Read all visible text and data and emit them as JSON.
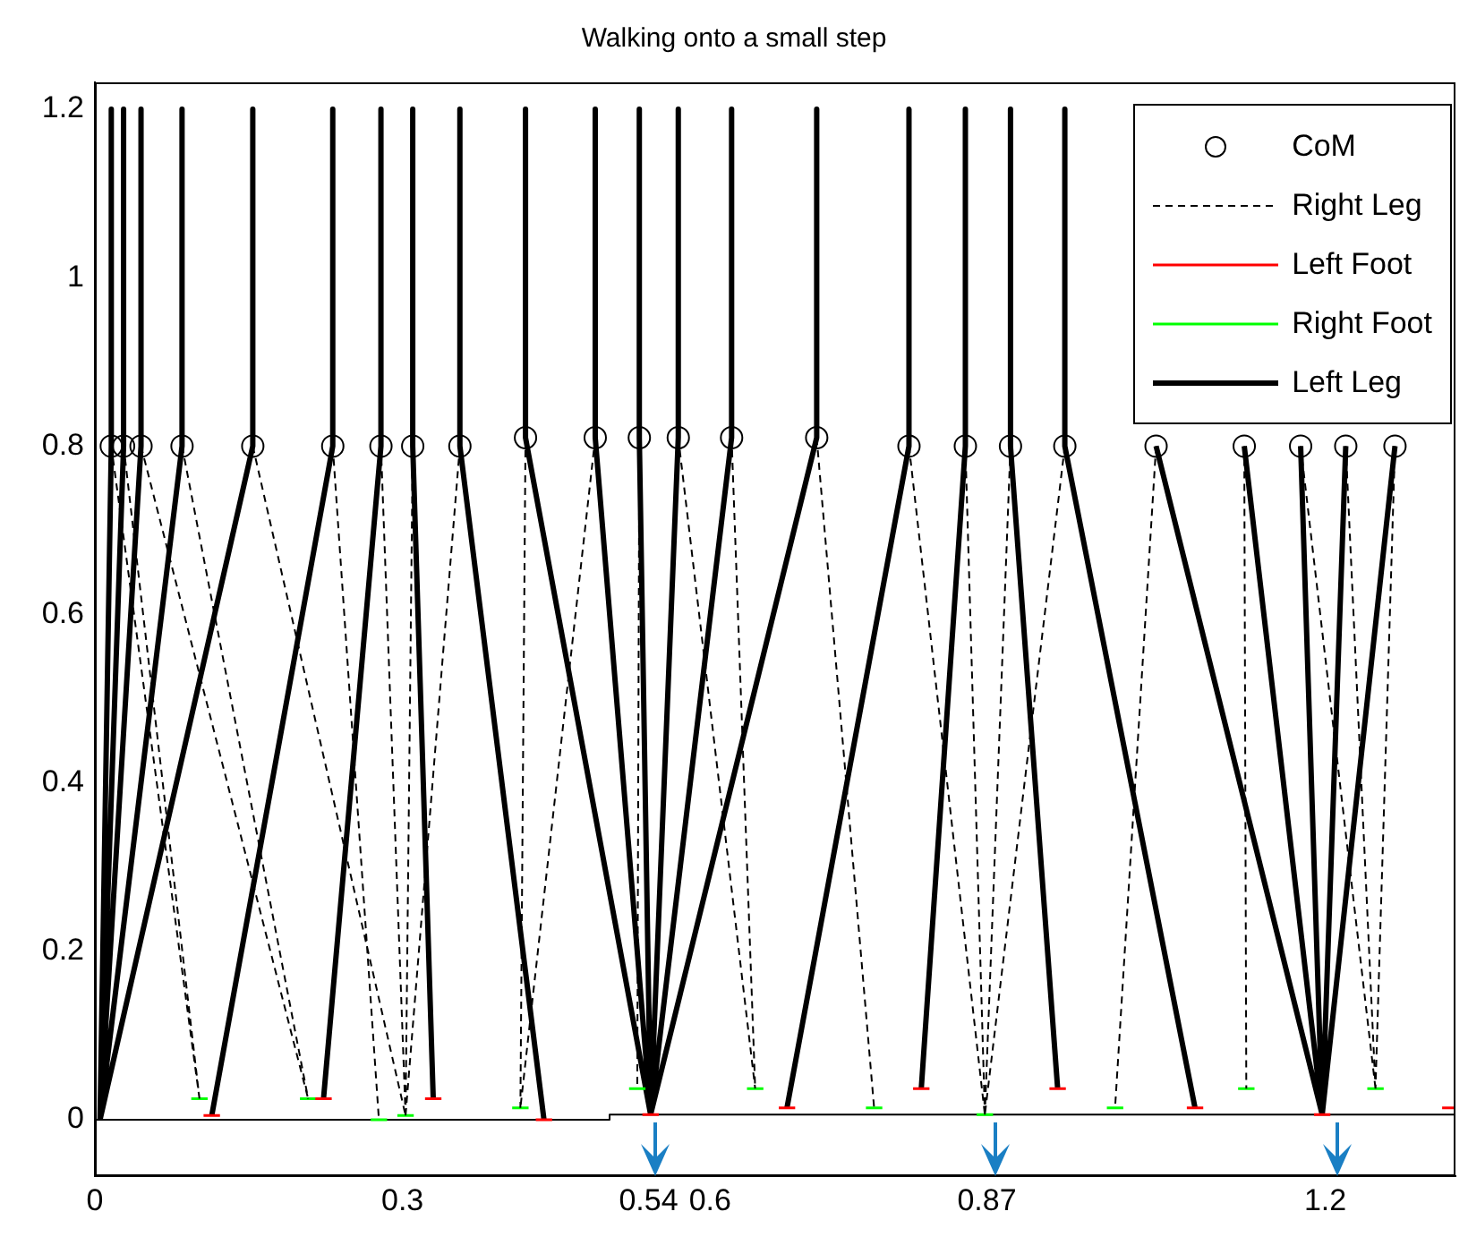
{
  "chart_data": {
    "type": "line",
    "title": "Walking onto a small step",
    "xlim": [
      0,
      1.327
    ],
    "ylim": [
      -0.067,
      1.232
    ],
    "xticks": [
      0,
      0.3,
      0.54,
      0.6,
      0.87,
      1.2
    ],
    "yticks": [
      0,
      0.2,
      0.4,
      0.6,
      0.8,
      1,
      1.2
    ],
    "grid": false,
    "legend": "top right",
    "series": [
      {
        "name": "CoM",
        "type": "scatter",
        "marker": "circle",
        "color": "#000000",
        "x": [
          0.016,
          0.028,
          0.045,
          0.085,
          0.154,
          0.232,
          0.279,
          0.31,
          0.356,
          0.42,
          0.488,
          0.531,
          0.569,
          0.621,
          0.704,
          0.794,
          0.849,
          0.893,
          0.946,
          1.035,
          1.121,
          1.176,
          1.22,
          1.268
        ],
        "values": [
          0.8,
          0.8,
          0.8,
          0.8,
          0.8,
          0.8,
          0.8,
          0.8,
          0.8,
          0.81,
          0.81,
          0.81,
          0.81,
          0.81,
          0.81,
          0.8,
          0.8,
          0.8,
          0.8,
          0.8,
          0.8,
          0.8,
          0.8,
          0.8
        ]
      },
      {
        "name": "Right Leg",
        "line_style": "dashed",
        "color": "#000000",
        "x": [
          0.016,
          0.102,
          null,
          0.028,
          0.102,
          null,
          0.045,
          0.208,
          null,
          0.085,
          0.208,
          null,
          0.154,
          0.303,
          null,
          0.232,
          0.277,
          null,
          0.279,
          0.303,
          null,
          0.31,
          0.303,
          null,
          0.356,
          0.303,
          null,
          0.42,
          0.415,
          null,
          0.488,
          0.415,
          null,
          0.531,
          0.529,
          null,
          0.569,
          0.644,
          null,
          0.621,
          0.644,
          null,
          0.704,
          0.76,
          null,
          0.794,
          0.868,
          null,
          0.849,
          0.868,
          null,
          0.893,
          0.868,
          null,
          0.946,
          0.868,
          null,
          1.035,
          0.995,
          null,
          1.121,
          1.123,
          null,
          1.176,
          1.249,
          null,
          1.22,
          1.249,
          null,
          1.268,
          1.249
        ],
        "values": [
          0.8,
          0.025,
          null,
          0.8,
          0.025,
          null,
          0.8,
          0.025,
          null,
          0.8,
          0.025,
          null,
          0.8,
          0.005,
          null,
          0.8,
          0,
          null,
          0.8,
          0.005,
          null,
          0.8,
          0.005,
          null,
          0.8,
          0.005,
          null,
          0.81,
          0.014,
          null,
          0.81,
          0.014,
          null,
          0.81,
          0.037,
          null,
          0.81,
          0.037,
          null,
          0.81,
          0.037,
          null,
          0.81,
          0.014,
          null,
          0.8,
          0.006,
          null,
          0.8,
          0.006,
          null,
          0.8,
          0.006,
          null,
          0.8,
          0.006,
          null,
          0.8,
          0.014,
          null,
          0.8,
          0.037,
          null,
          0.8,
          0.037,
          null,
          0.8,
          0.037,
          null,
          0.8,
          0.037
        ]
      },
      {
        "name": "Left Foot",
        "line_style": "solid",
        "color": "#ff0000",
        "x": [
          0.106,
          0.122,
          null,
          0.215,
          0.231,
          null,
          0.322,
          0.338,
          null,
          0.43,
          0.446,
          null,
          0.534,
          0.55,
          null,
          0.667,
          0.683,
          null,
          0.798,
          0.814,
          null,
          0.931,
          0.947,
          null,
          1.065,
          1.081,
          null,
          1.189,
          1.205,
          null,
          1.314,
          1.327
        ],
        "values": [
          0.005,
          0.005,
          null,
          0.025,
          0.025,
          null,
          0.025,
          0.025,
          null,
          0,
          0,
          null,
          0.006,
          0.006,
          null,
          0.014,
          0.014,
          null,
          0.037,
          0.037,
          null,
          0.037,
          0.037,
          null,
          0.014,
          0.014,
          null,
          0.006,
          0.006,
          null,
          0.014,
          0.014
        ]
      },
      {
        "name": "Right Foot",
        "line_style": "solid",
        "color": "#00ff00",
        "x": [
          0.094,
          0.11,
          null,
          0.2,
          0.216,
          null,
          0.269,
          0.285,
          null,
          0.295,
          0.311,
          null,
          0.407,
          0.423,
          null,
          0.521,
          0.537,
          null,
          0.636,
          0.652,
          null,
          0.752,
          0.768,
          null,
          0.86,
          0.876,
          null,
          0.987,
          1.003,
          null,
          1.115,
          1.131,
          null,
          1.241,
          1.257
        ],
        "values": [
          0.025,
          0.025,
          null,
          0.025,
          0.025,
          null,
          0,
          0,
          null,
          0.005,
          0.005,
          null,
          0.014,
          0.014,
          null,
          0.037,
          0.037,
          null,
          0.037,
          0.037,
          null,
          0.014,
          0.014,
          null,
          0.006,
          0.006,
          null,
          0.014,
          0.014,
          null,
          0.037,
          0.037,
          null,
          0.037,
          0.037
        ]
      },
      {
        "name": "Left Leg",
        "line_style": "solid",
        "color": "#000000",
        "x": [
          0.016,
          0.016,
          0.005,
          null,
          0.028,
          0.028,
          0.005,
          null,
          0.045,
          0.045,
          0.005,
          null,
          0.085,
          0.085,
          0.005,
          null,
          0.154,
          0.154,
          0.005,
          null,
          0.232,
          0.232,
          0.114,
          null,
          0.279,
          0.279,
          0.223,
          null,
          0.31,
          0.31,
          0.33,
          null,
          0.356,
          0.356,
          0.438,
          null,
          0.42,
          0.42,
          0.542,
          null,
          0.488,
          0.488,
          0.542,
          null,
          0.531,
          0.531,
          0.542,
          null,
          0.569,
          0.569,
          0.542,
          null,
          0.621,
          0.621,
          0.542,
          null,
          0.704,
          0.704,
          0.542,
          null,
          0.794,
          0.794,
          0.675,
          null,
          0.849,
          0.849,
          0.806,
          null,
          0.893,
          0.893,
          0.939,
          null,
          0.946,
          0.946,
          1.073,
          null,
          1.035,
          1.197,
          null,
          1.121,
          1.197,
          null,
          1.176,
          1.197,
          null,
          1.22,
          1.197,
          null,
          1.268,
          1.197
        ],
        "values": [
          1.2,
          0.8,
          0,
          null,
          1.2,
          0.8,
          0,
          null,
          1.2,
          0.8,
          0,
          null,
          1.2,
          0.8,
          0,
          null,
          1.2,
          0.8,
          0,
          null,
          1.2,
          0.8,
          0.005,
          null,
          1.2,
          0.8,
          0.025,
          null,
          1.2,
          0.8,
          0.025,
          null,
          1.2,
          0.8,
          0,
          null,
          1.2,
          0.81,
          0.006,
          null,
          1.2,
          0.81,
          0.006,
          null,
          1.2,
          0.81,
          0.006,
          null,
          1.2,
          0.81,
          0.006,
          null,
          1.2,
          0.81,
          0.006,
          null,
          1.2,
          0.81,
          0.006,
          null,
          1.2,
          0.8,
          0.014,
          null,
          1.2,
          0.8,
          0.037,
          null,
          1.2,
          0.8,
          0.037,
          null,
          1.2,
          0.8,
          0.014,
          null,
          0.8,
          0.006,
          null,
          0.8,
          0.006,
          null,
          0.8,
          0.006,
          null,
          0.8,
          0.006,
          null,
          0.8,
          0.006
        ]
      },
      {
        "type": "line",
        "line_style": "solid",
        "color": "#000000",
        "x": [
          0,
          0.502,
          0.502,
          1.327
        ],
        "values": [
          0,
          0,
          0.006,
          0.006
        ]
      }
    ]
  }
}
